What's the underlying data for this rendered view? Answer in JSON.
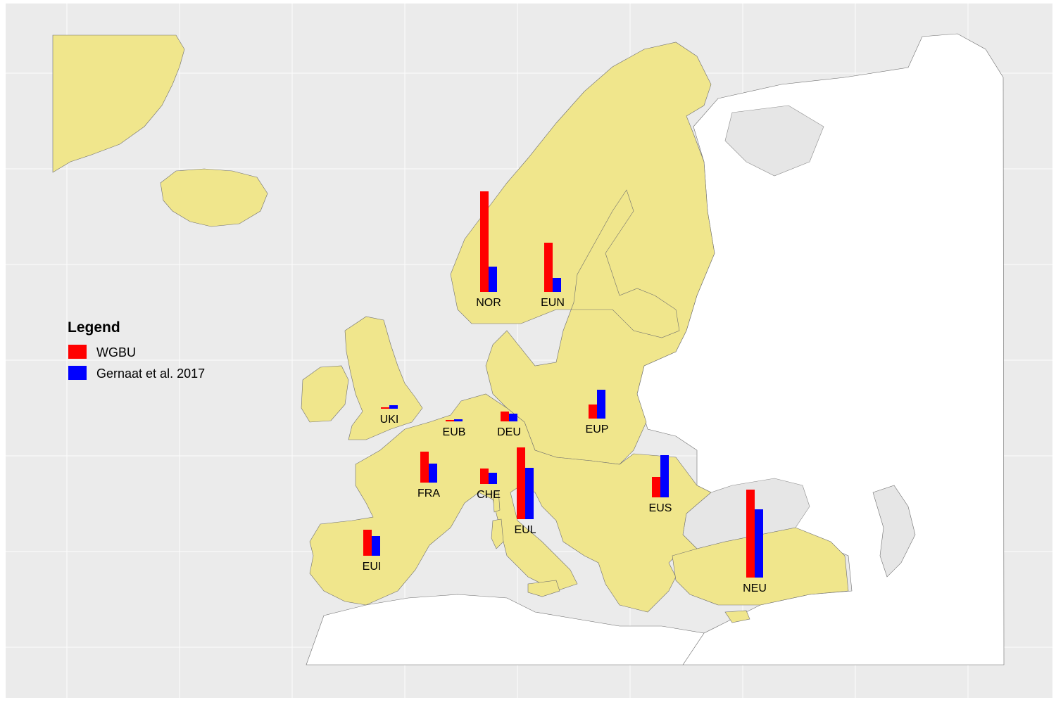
{
  "legend": {
    "title": "Legend",
    "items": [
      {
        "label": "WGBU",
        "color": "#ff0000"
      },
      {
        "label": "Gernaat et al. 2017",
        "color": "#0000ff"
      }
    ]
  },
  "colors": {
    "panel_background": "#ebebeb",
    "grid": "#ffffff",
    "modelled_land": "#f0e68c",
    "other_land": "#ffffff",
    "unselected_land": "#e6e6e6",
    "border": "#6e6e6e"
  },
  "chart_data": {
    "type": "bar",
    "title": "",
    "xlabel": "",
    "ylabel": "",
    "series_names": [
      "WGBU",
      "Gernaat et al. 2017"
    ],
    "regions": [
      {
        "name": "NOR",
        "values": [
          143,
          36
        ]
      },
      {
        "name": "EUN",
        "values": [
          70,
          20
        ]
      },
      {
        "name": "UKI",
        "values": [
          2,
          5
        ]
      },
      {
        "name": "EUB",
        "values": [
          2,
          3
        ]
      },
      {
        "name": "DEU",
        "values": [
          14,
          11
        ]
      },
      {
        "name": "EUP",
        "values": [
          20,
          41
        ]
      },
      {
        "name": "FRA",
        "values": [
          44,
          27
        ]
      },
      {
        "name": "CHE",
        "values": [
          22,
          16
        ]
      },
      {
        "name": "EUL",
        "values": [
          102,
          73
        ]
      },
      {
        "name": "EUS",
        "values": [
          29,
          60
        ]
      },
      {
        "name": "EUI",
        "values": [
          37,
          28
        ]
      },
      {
        "name": "NEU",
        "values": [
          125,
          97
        ]
      }
    ]
  }
}
